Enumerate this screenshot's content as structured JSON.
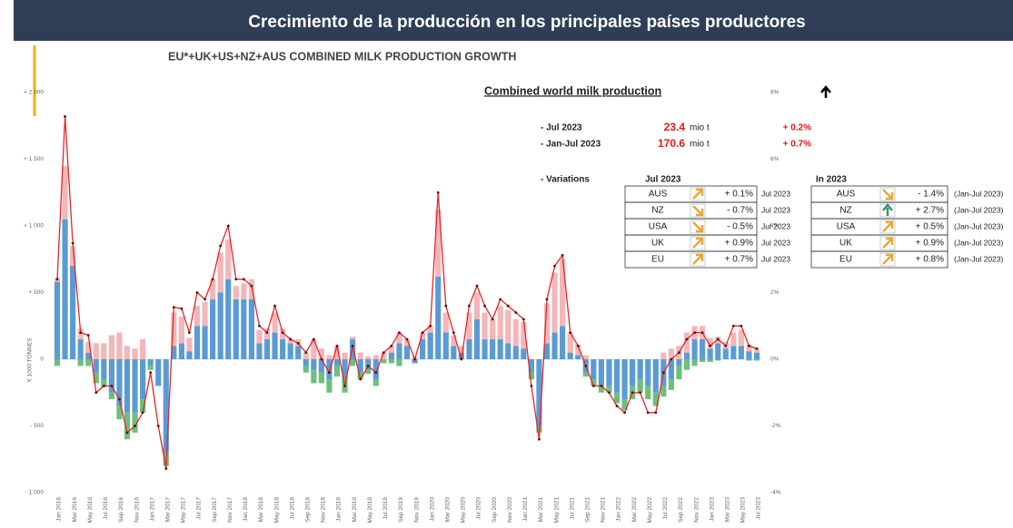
{
  "header": {
    "title": "Crecimiento de la producción en los principales países productores"
  },
  "chart_data": {
    "type": "stacked-bar-line",
    "title": "EU*+UK+US+NZ+AUS COMBINED MILK PRODUCTION GROWTH",
    "y_label": "X 1000 TONNES",
    "categories": [
      "Jan 2016",
      null,
      "Mar 2016",
      null,
      "May 2016",
      null,
      "Jul 2016",
      null,
      "Sep 2016",
      null,
      "Nov 2016",
      null,
      "Jan 2017",
      null,
      "Mar 2017",
      null,
      "May 2017",
      null,
      "Jul 2017",
      null,
      "Sep 2017",
      null,
      "Nov 2017",
      null,
      "Jan 2018",
      null,
      "Mar 2018",
      null,
      "May 2018",
      null,
      "Jul 2018",
      null,
      "Sep 2018",
      null,
      "Nov 2018",
      null,
      "Jan 2019",
      null,
      "Mar 2019",
      null,
      "May 2019",
      null,
      "Jul 2019",
      null,
      "Sep 2019",
      null,
      "Nov 2019",
      null,
      "Jan 2020",
      null,
      "Mar 2020",
      null,
      "May 2020",
      null,
      "Jul 2020",
      null,
      "Sep 2020",
      null,
      "Nov 2020",
      null,
      "Jan 2021",
      null,
      "Mar 2021",
      null,
      "May 2021",
      null,
      "Jul 2021",
      null,
      "Sep 2021",
      null,
      "Nov 2021",
      null,
      "Jan 2022",
      null,
      "Mar 2022",
      null,
      "May 2022",
      null,
      "Jul 2022",
      null,
      "Sep 2022",
      null,
      "Nov 2022",
      null,
      "Jan 2023",
      null,
      "Mar 2023",
      null,
      "May 2023",
      null,
      "Jul 2023"
    ],
    "series": [
      {
        "color": "#5b9bd5",
        "values": [
          580,
          1050,
          700,
          150,
          50,
          -100,
          -150,
          -250,
          -350,
          -400,
          -400,
          -300,
          -50,
          -200,
          -700,
          100,
          120,
          60,
          250,
          250,
          450,
          500,
          600,
          450,
          450,
          450,
          120,
          150,
          200,
          150,
          120,
          100,
          -50,
          -80,
          -100,
          -150,
          -50,
          -150,
          150,
          -100,
          -80,
          -150,
          0,
          50,
          120,
          100,
          -30,
          150,
          200,
          620,
          200,
          100,
          50,
          150,
          300,
          150,
          150,
          150,
          120,
          100,
          80,
          -100,
          -500,
          120,
          200,
          250,
          50,
          30,
          -100,
          -150,
          -200,
          -200,
          -250,
          -300,
          -200,
          -150,
          -200,
          -250,
          -200,
          -150,
          -50,
          50,
          150,
          150,
          80,
          120,
          80,
          100,
          100,
          60,
          50
        ]
      },
      {
        "color": "#f4b6b9",
        "values": [
          30,
          400,
          150,
          80,
          80,
          120,
          120,
          180,
          200,
          100,
          80,
          150,
          0,
          0,
          0,
          250,
          200,
          100,
          150,
          180,
          150,
          300,
          300,
          100,
          120,
          150,
          100,
          80,
          150,
          80,
          30,
          50,
          50,
          150,
          80,
          30,
          100,
          50,
          20,
          50,
          20,
          30,
          50,
          50,
          80,
          50,
          20,
          50,
          50,
          500,
          150,
          80,
          50,
          200,
          200,
          200,
          150,
          250,
          250,
          200,
          200,
          0,
          0,
          300,
          450,
          500,
          150,
          80,
          30,
          0,
          0,
          0,
          0,
          0,
          0,
          0,
          0,
          0,
          50,
          80,
          100,
          150,
          100,
          100,
          80,
          50,
          50,
          100,
          120,
          50,
          30
        ]
      },
      {
        "color": "#6cc07a",
        "values": [
          -50,
          0,
          0,
          -50,
          -50,
          -80,
          -60,
          -50,
          -100,
          -200,
          -150,
          -100,
          -30,
          0,
          -100,
          0,
          0,
          0,
          0,
          0,
          0,
          0,
          0,
          0,
          0,
          0,
          0,
          0,
          0,
          0,
          0,
          0,
          -50,
          -100,
          -80,
          -100,
          -80,
          -100,
          -50,
          -50,
          -30,
          -50,
          -30,
          -30,
          -50,
          0,
          0,
          0,
          0,
          0,
          0,
          0,
          0,
          0,
          0,
          0,
          0,
          0,
          0,
          0,
          0,
          -50,
          -50,
          0,
          0,
          0,
          0,
          0,
          -30,
          -50,
          -50,
          -50,
          -80,
          -80,
          -100,
          -100,
          -100,
          -100,
          -80,
          -80,
          -100,
          -80,
          -50,
          -20,
          -20,
          -10,
          0,
          0,
          0,
          -10,
          -10
        ]
      }
    ],
    "line": {
      "color": "#e02828",
      "values": [
        600,
        1820,
        870,
        200,
        180,
        -250,
        -200,
        -200,
        -300,
        -550,
        -500,
        -400,
        -100,
        -500,
        -820,
        390,
        380,
        200,
        500,
        450,
        600,
        850,
        1000,
        600,
        600,
        550,
        250,
        200,
        400,
        200,
        150,
        120,
        50,
        150,
        0,
        -100,
        100,
        -200,
        100,
        -150,
        -50,
        -100,
        50,
        100,
        200,
        150,
        0,
        200,
        250,
        1250,
        400,
        200,
        0,
        400,
        550,
        400,
        300,
        450,
        400,
        350,
        300,
        -200,
        -600,
        450,
        700,
        780,
        200,
        100,
        -50,
        -200,
        -200,
        -250,
        -350,
        -400,
        -250,
        -250,
        -400,
        -400,
        -100,
        0,
        50,
        150,
        200,
        200,
        100,
        150,
        100,
        250,
        250,
        100,
        80
      ]
    },
    "ylim": [
      -1000,
      2000
    ],
    "yticks": [
      {
        "value": 2000,
        "label": "+ 2 000"
      },
      {
        "value": 1500,
        "label": "+ 1 500"
      },
      {
        "value": 1000,
        "label": "+ 1 000"
      },
      {
        "value": 500,
        "label": "+ 500"
      },
      0,
      {
        "value": -500,
        "label": "- 500"
      },
      {
        "value": -1000,
        "label": "- 1 000"
      }
    ],
    "y2lim": [
      -4,
      8
    ],
    "y2ticks": [
      {
        "value": 8,
        "label": "8%"
      },
      {
        "value": 6,
        "label": "6%"
      },
      {
        "value": 4,
        "label": "4%"
      },
      {
        "value": 2,
        "label": "2%"
      },
      {
        "value": 0,
        "label": "0%"
      },
      {
        "value": -2,
        "label": "-2%"
      },
      {
        "value": -4,
        "label": "-4%"
      }
    ]
  },
  "summary": {
    "heading": "Combined world milk production",
    "rows": [
      {
        "label": "- Jul 2023",
        "value": "23.4",
        "unit": "mio t",
        "change": "+ 0.2%"
      },
      {
        "label": "- Jan-Jul 2023",
        "value": "170.6",
        "unit": "mio t",
        "change": "+ 0.7%"
      }
    ],
    "variations_label": "- Variations",
    "table_month": {
      "title": "Jul 2023",
      "rows": [
        [
          "AUS",
          "+ 0.1%",
          "Jul 2023"
        ],
        [
          "NZ",
          "- 0.7%",
          "Jul 2023"
        ],
        [
          "USA",
          "- 0.5%",
          "Jul 2023"
        ],
        [
          "UK",
          "+ 0.9%",
          "Jul 2023"
        ],
        [
          "EU",
          "+ 0.7%",
          "Jul 2023"
        ]
      ]
    },
    "table_year": {
      "title": "In 2023",
      "rows": [
        [
          "AUS",
          "- 1.4%",
          "(Jan-Jul 2023)"
        ],
        [
          "NZ",
          "+ 2.7%",
          "(Jan-Jul 2023)"
        ],
        [
          "USA",
          "+ 0.5%",
          "(Jan-Jul 2023)"
        ],
        [
          "UK",
          "+ 0.9%",
          "(Jan-Jul 2023)"
        ],
        [
          "EU",
          "+ 0.8%",
          "(Jan-Jul 2023)"
        ]
      ]
    }
  }
}
